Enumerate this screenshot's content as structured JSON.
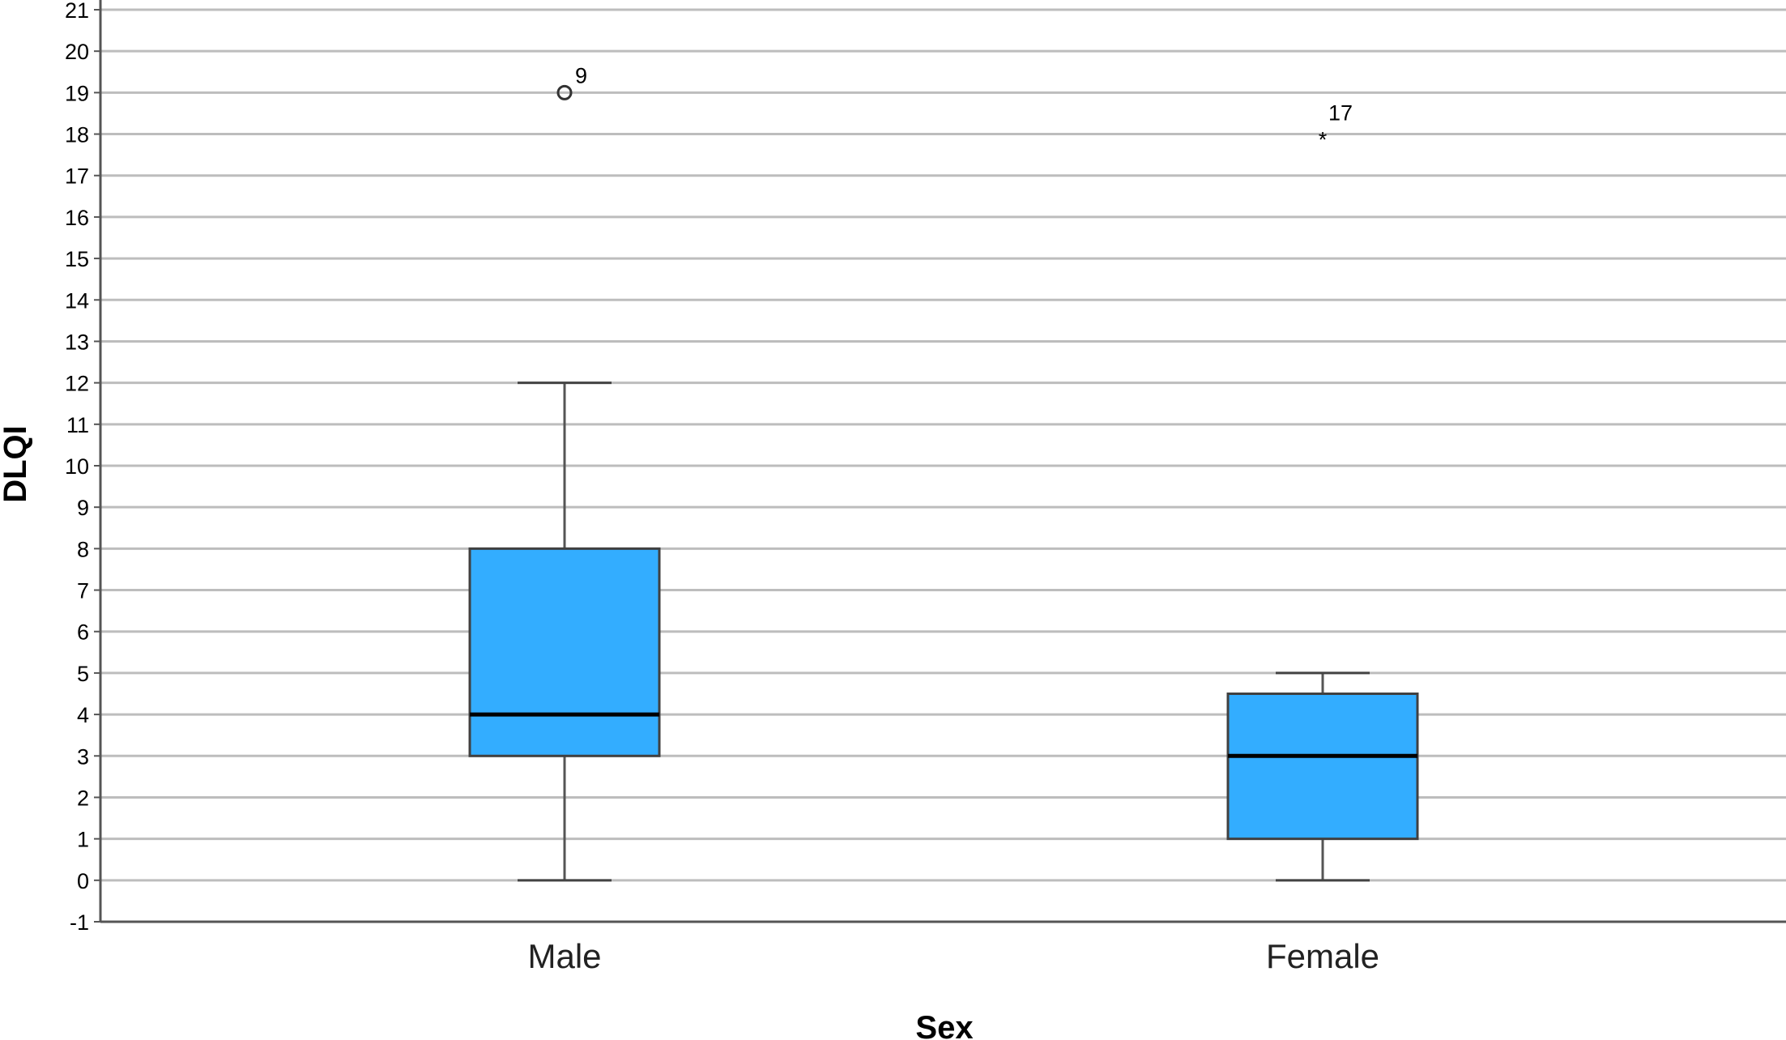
{
  "chart_data": {
    "type": "boxplot",
    "xlabel": "Sex",
    "ylabel": "DLQI",
    "ylim": [
      -1,
      21
    ],
    "yticks": [
      -1,
      0,
      1,
      2,
      3,
      4,
      5,
      6,
      7,
      8,
      9,
      10,
      11,
      12,
      13,
      14,
      15,
      16,
      17,
      18,
      19,
      20,
      21
    ],
    "grid": "horizontal",
    "box_color": "#33adff",
    "categories": [
      "Male",
      "Female"
    ],
    "boxes": [
      {
        "category": "Male",
        "whisker_low": 0,
        "q1": 3,
        "median": 4,
        "q3": 8,
        "whisker_high": 12,
        "outliers": [
          {
            "value": 19,
            "label": "9",
            "marker": "circle"
          }
        ]
      },
      {
        "category": "Female",
        "whisker_low": 0,
        "q1": 1,
        "median": 3,
        "q3": 4.5,
        "whisker_high": 5,
        "outliers": [
          {
            "value": 18,
            "label": "17",
            "marker": "star"
          }
        ]
      }
    ]
  }
}
